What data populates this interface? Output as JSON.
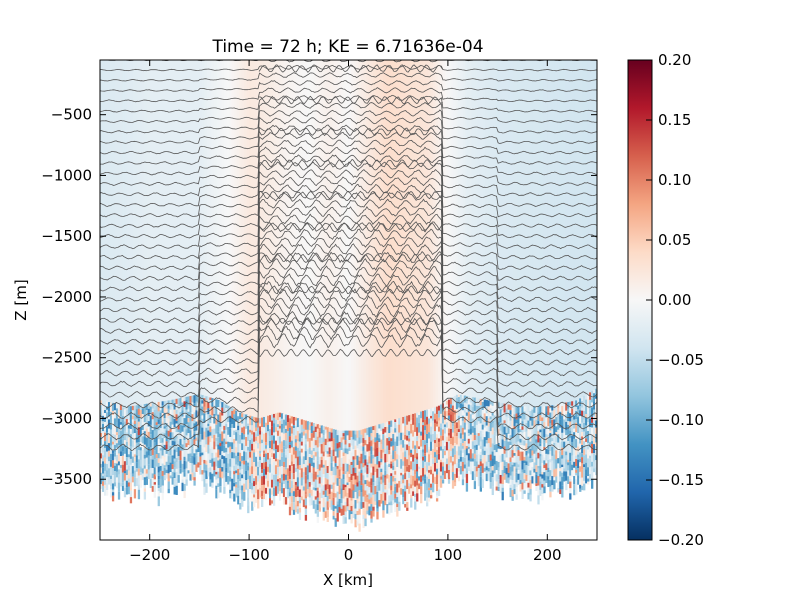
{
  "chart_data": {
    "type": "heatmap",
    "title": "Time = 72 h; KE = 6.71636e-04",
    "xlabel": "X [km]",
    "ylabel": "Z [m]",
    "xlim": [
      -250,
      250
    ],
    "ylim": [
      -4000,
      -50
    ],
    "x_ticks": [
      -200,
      -100,
      0,
      100,
      200
    ],
    "x_tick_labels": [
      "−200",
      "−100",
      "0",
      "100",
      "200"
    ],
    "y_ticks": [
      -500,
      -1000,
      -1500,
      -2000,
      -2500,
      -3000,
      -3500
    ],
    "y_tick_labels": [
      "−500",
      "−1000",
      "−1500",
      "−2000",
      "−2500",
      "−3000",
      "−3500"
    ],
    "colorbar": {
      "colormap": "RdBu_r",
      "range": [
        -0.2,
        0.2
      ],
      "ticks": [
        0.2,
        0.15,
        0.1,
        0.05,
        0.0,
        -0.05,
        -0.1,
        -0.15,
        -0.2
      ],
      "tick_labels": [
        "0.20",
        "0.15",
        "0.10",
        "0.05",
        "0.00",
        "−0.05",
        "−0.10",
        "−0.15",
        "−0.20"
      ],
      "colors": [
        "#053061",
        "#2166ac",
        "#4393c3",
        "#92c5de",
        "#d1e5f0",
        "#f7f7f7",
        "#fddbc7",
        "#f4a582",
        "#d6604d",
        "#b2182b",
        "#67001f"
      ]
    },
    "field_profile": {
      "x_km": [
        -250,
        -200,
        -150,
        -120,
        -100,
        -80,
        -60,
        -40,
        -20,
        0,
        20,
        40,
        60,
        80,
        95,
        120,
        150,
        200,
        250
      ],
      "value": [
        -0.03,
        -0.02,
        -0.02,
        0.0,
        0.02,
        0.015,
        0.005,
        0.0,
        0.01,
        0.0,
        0.02,
        0.035,
        0.03,
        0.025,
        0.005,
        -0.02,
        -0.03,
        -0.035,
        -0.04
      ]
    },
    "bottom_depth_profile": {
      "x_km": [
        -250,
        -220,
        -180,
        -150,
        -130,
        -110,
        -90,
        -70,
        -50,
        -30,
        -10,
        10,
        30,
        50,
        70,
        90,
        110,
        140,
        170,
        200,
        230,
        250
      ],
      "z_m": [
        -3450,
        -3500,
        -3450,
        -3400,
        -3450,
        -3550,
        -3600,
        -3550,
        -3600,
        -3650,
        -3700,
        -3700,
        -3650,
        -3600,
        -3550,
        -3500,
        -3400,
        -3450,
        -3500,
        -3500,
        -3450,
        -3350
      ]
    },
    "contour_lines": {
      "count_outer": 38,
      "count_center": 48,
      "center_region_km": [
        -90,
        95
      ],
      "color": "#555555"
    }
  }
}
